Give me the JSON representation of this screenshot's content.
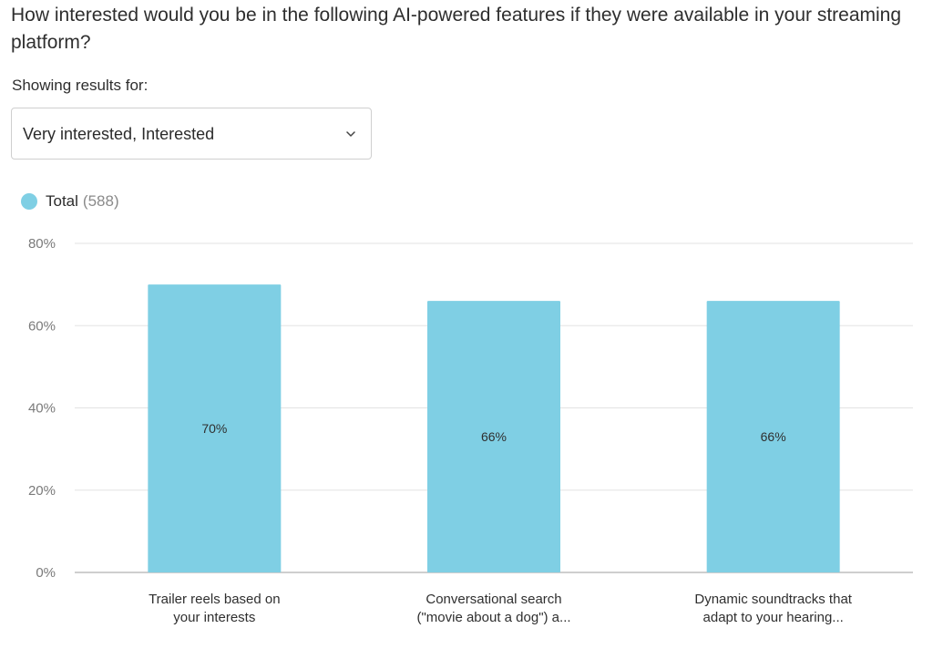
{
  "question": "How interested would you be in the following AI-powered features if they were available in your streaming platform?",
  "filter": {
    "label": "Showing results for:",
    "selected": "Very interested, Interested"
  },
  "legend": {
    "name": "Total",
    "count": "(588)"
  },
  "colors": {
    "bar": "#7fcfe4",
    "grid": "#e3e3e3",
    "axis": "#bdbdbd"
  },
  "chart_data": {
    "type": "bar",
    "categories": [
      [
        "Trailer reels based on",
        "your interests"
      ],
      [
        "Conversational search",
        "(\"movie about a dog\") a..."
      ],
      [
        "Dynamic soundtracks that",
        "adapt to your hearing..."
      ]
    ],
    "series": [
      {
        "name": "Total",
        "values": [
          70,
          66,
          66
        ]
      }
    ],
    "data_labels": [
      "70%",
      "66%",
      "66%"
    ],
    "y_ticks": [
      {
        "value": 0,
        "label": "0%"
      },
      {
        "value": 20,
        "label": "20%"
      },
      {
        "value": 40,
        "label": "40%"
      },
      {
        "value": 60,
        "label": "60%"
      },
      {
        "value": 80,
        "label": "80%"
      }
    ],
    "ylim": [
      0,
      80
    ],
    "grid": true,
    "legend_position": "top-left"
  }
}
